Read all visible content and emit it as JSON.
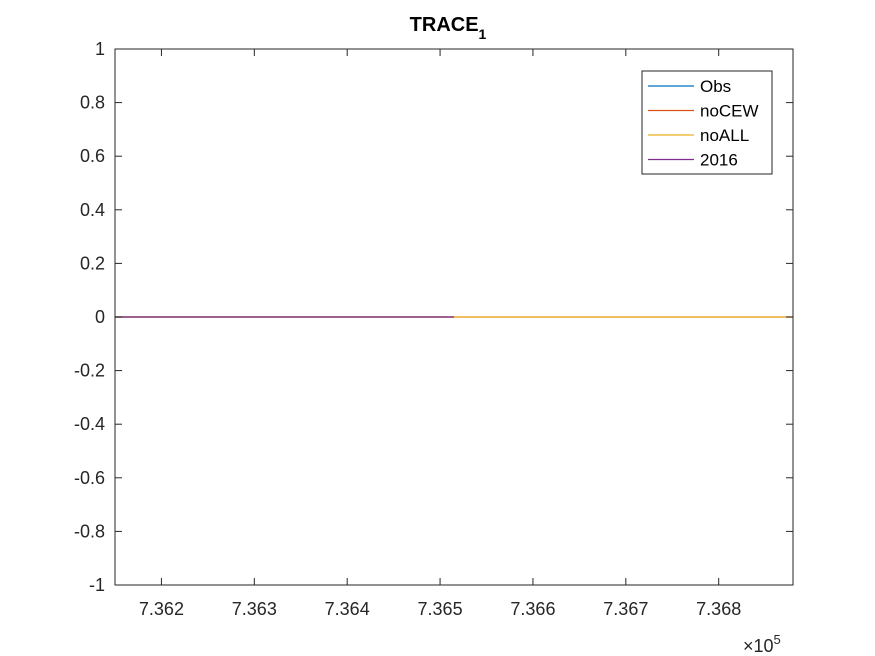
{
  "chart_data": {
    "type": "line",
    "title": "TRACE",
    "title_subscript": "1",
    "xlabel": "",
    "ylabel": "",
    "xlim": [
      736150,
      736880
    ],
    "ylim": [
      -1,
      1
    ],
    "x_exponent_label": {
      "prefix": "×10",
      "power": "5"
    },
    "x_ticks": [
      736200,
      736300,
      736400,
      736500,
      736600,
      736700,
      736800
    ],
    "x_tick_labels": [
      "7.362",
      "7.363",
      "7.364",
      "7.365",
      "7.366",
      "7.367",
      "7.368"
    ],
    "y_ticks": [
      1,
      0.8,
      0.6,
      0.4,
      0.2,
      0,
      -0.2,
      -0.4,
      -0.6,
      -0.8,
      -1
    ],
    "y_tick_labels": [
      "1",
      "0.8",
      "0.6",
      "0.4",
      "0.2",
      "0",
      "-0.2",
      "-0.4",
      "-0.6",
      "-0.8",
      "-1"
    ],
    "grid": false,
    "legend_position": "top-right",
    "series": [
      {
        "name": "Obs",
        "color": "#0072BD",
        "x": [
          736150,
          736515
        ],
        "y": [
          0,
          0
        ]
      },
      {
        "name": "noCEW",
        "color": "#D95319",
        "x": [
          736150,
          736880
        ],
        "y": [
          0,
          0
        ]
      },
      {
        "name": "noALL",
        "color": "#EDB120",
        "x": [
          736150,
          736880
        ],
        "y": [
          0,
          0
        ]
      },
      {
        "name": "2016",
        "color": "#7E2F8E",
        "x": [
          736150,
          736515
        ],
        "y": [
          0,
          0
        ]
      }
    ]
  }
}
